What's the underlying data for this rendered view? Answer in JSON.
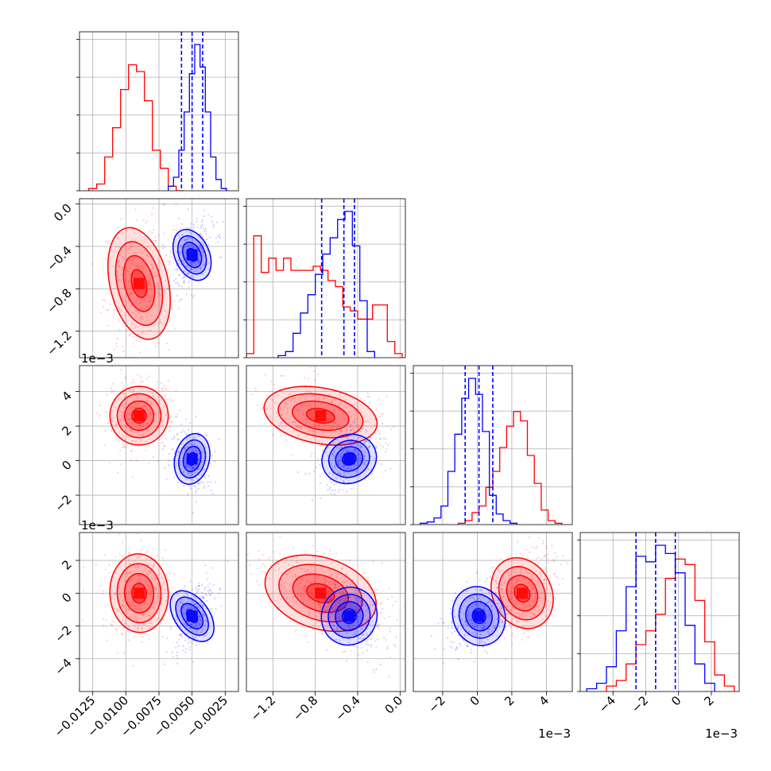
{
  "chart_data": {
    "type": "corner",
    "parameters": 4,
    "grid": true,
    "colors": {
      "series_a": "#ff0000",
      "series_b": "#0000ff"
    },
    "axis_ranges": [
      [
        -0.0135,
        -0.0015
      ],
      [
        -0.00145,
        5e-05
      ],
      [
        -0.0037,
        0.0055
      ],
      [
        -0.006,
        0.0037
      ]
    ],
    "tick_labels": {
      "p1": [
        "−0.0125",
        "−0.0100",
        "−0.0075",
        "−0.0050",
        "−0.0025"
      ],
      "p2": [
        "−1.2",
        "−0.8",
        "−0.4",
        "0.0"
      ],
      "p3": [
        "−2",
        "0",
        "2",
        "4"
      ],
      "p4": [
        "−4",
        "−2",
        "0",
        "2"
      ]
    },
    "tick_values": {
      "p1": [
        -0.0125,
        -0.01,
        -0.0075,
        -0.005,
        -0.0025
      ],
      "p2": [
        -0.0012,
        -0.0008,
        -0.0004,
        0.0
      ],
      "p3": [
        -0.002,
        0.0,
        0.002,
        0.004
      ],
      "p4": [
        -0.004,
        -0.002,
        0.0,
        0.002
      ]
    },
    "offset_labels": [
      "1e−3",
      "1e−3"
    ],
    "quantile_lines": {
      "p1": [
        -0.0058,
        -0.005,
        -0.0042
      ],
      "p2": [
        -0.00074,
        -0.00053,
        -0.00043
      ],
      "p3": [
        -0.0007,
        0.0001,
        0.0009
      ],
      "p4": [
        -0.0026,
        -0.0014,
        -0.0002
      ]
    },
    "series": [
      {
        "color": "#ff0000",
        "center": [
          -0.009,
          -0.00075,
          0.0026,
          0.0
        ],
        "histograms": {
          "p1": {
            "bin_edges": [
              -0.0128,
              -0.0122,
              -0.0116,
              -0.011,
              -0.0104,
              -0.0098,
              -0.0092,
              -0.0086,
              -0.008,
              -0.0074,
              -0.0068,
              -0.0062,
              -0.0056
            ],
            "counts": [
              1,
              3,
              15,
              28,
              45,
              56,
              53,
              40,
              18,
              10,
              2,
              0
            ]
          },
          "p2": {
            "bin_edges": [
              -0.00145,
              -0.00138,
              -0.00131,
              -0.00124,
              -0.00117,
              -0.0011,
              -0.00103,
              -0.00096,
              -0.00089,
              -0.00082,
              -0.00075,
              -0.00068,
              -0.00061,
              -0.00054,
              -0.00047,
              -0.0004,
              -0.00033,
              -0.00026,
              -0.00019,
              -0.00012,
              -5e-05,
              2e-05
            ],
            "counts": [
              2,
              60,
              42,
              49,
              43,
              49,
              43,
              43,
              43,
              45,
              43,
              38,
              35,
              25,
              23,
              19,
              19,
              26,
              26,
              8,
              2
            ]
          },
          "p3": {
            "bin_edges": [
              -0.0011,
              -0.0007,
              -0.0003,
              0.0001,
              0.0005,
              0.0009,
              0.0013,
              0.0017,
              0.0021,
              0.0025,
              0.0029,
              0.0033,
              0.0037,
              0.0041,
              0.0045,
              0.0049
            ],
            "counts": [
              1,
              3,
              9,
              14,
              28,
              40,
              58,
              74,
              85,
              78,
              52,
              31,
              11,
              3,
              1
            ]
          },
          "p4": {
            "bin_edges": [
              -0.0044,
              -0.0038,
              -0.0032,
              -0.0026,
              -0.002,
              -0.0014,
              -0.0008,
              -0.0002,
              0.0004,
              0.001,
              0.0016,
              0.0022,
              0.0028,
              0.0034
            ],
            "counts": [
              2,
              4,
              10,
              17,
              22,
              28,
              41,
              48,
              46,
              33,
              18,
              6,
              2
            ]
          }
        }
      },
      {
        "color": "#0000ff",
        "center": [
          -0.005,
          -0.00048,
          0.0001,
          -0.0014
        ],
        "histograms": {
          "p1": {
            "bin_edges": [
              -0.0068,
              -0.0064,
              -0.006,
              -0.0056,
              -0.0052,
              -0.0048,
              -0.0044,
              -0.004,
              -0.0036,
              -0.0032,
              -0.0028,
              -0.0024
            ],
            "counts": [
              2,
              6,
              18,
              35,
              52,
              65,
              55,
              35,
              15,
              5,
              1
            ]
          },
          "p2": {
            "bin_edges": [
              -0.00115,
              -0.00108,
              -0.00101,
              -0.00094,
              -0.00087,
              -0.0008,
              -0.00073,
              -0.00066,
              -0.00059,
              -0.00052,
              -0.00045,
              -0.00038,
              -0.00031,
              -0.00024
            ],
            "counts": [
              1,
              3,
              12,
              22,
              31,
              41,
              51,
              59,
              68,
              72,
              55,
              28,
              3
            ]
          },
          "p3": {
            "bin_edges": [
              -0.0033,
              -0.0029,
              -0.0025,
              -0.0021,
              -0.0017,
              -0.0013,
              -0.0009,
              -0.0005,
              -0.0001,
              0.0003,
              0.0007,
              0.0011,
              0.0015,
              0.0019,
              0.0023
            ],
            "counts": [
              1,
              2,
              5,
              14,
              40,
              68,
              95,
              110,
              98,
              70,
              22,
              8,
              3,
              1
            ]
          },
          "p4": {
            "bin_edges": [
              -0.0056,
              -0.005,
              -0.0044,
              -0.0038,
              -0.0032,
              -0.0026,
              -0.002,
              -0.0014,
              -0.0008,
              -0.0002,
              0.0004,
              0.001,
              0.0016,
              0.0022
            ],
            "counts": [
              1,
              3,
              9,
              22,
              38,
              49,
              47,
              53,
              50,
              43,
              24,
              10,
              3
            ]
          }
        }
      }
    ]
  }
}
